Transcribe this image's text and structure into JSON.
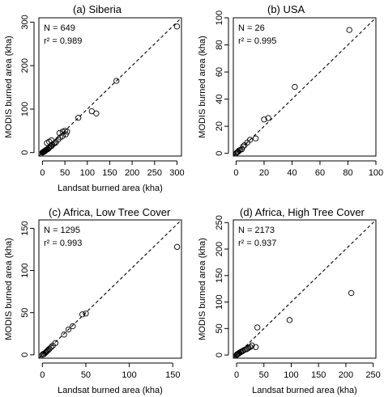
{
  "chart_data": [
    {
      "type": "scatter",
      "title": "(a) Siberia",
      "xlabel": "Landsat burned area (kha)",
      "ylabel": "MODIS burned area (kha)",
      "xlim": [
        -8,
        310
      ],
      "ylim": [
        -8,
        310
      ],
      "xticks": [
        0,
        50,
        100,
        150,
        200,
        250,
        300
      ],
      "yticks": [
        0,
        100,
        200,
        300
      ],
      "n_label": "N = 649",
      "r2_label": "r² = 0.989",
      "points": [
        [
          0,
          0
        ],
        [
          1,
          1
        ],
        [
          2,
          1
        ],
        [
          3,
          2
        ],
        [
          4,
          3
        ],
        [
          5,
          3
        ],
        [
          6,
          4
        ],
        [
          7,
          5
        ],
        [
          8,
          6
        ],
        [
          10,
          7
        ],
        [
          12,
          8
        ],
        [
          14,
          10
        ],
        [
          15,
          12
        ],
        [
          18,
          14
        ],
        [
          20,
          15
        ],
        [
          22,
          18
        ],
        [
          25,
          20
        ],
        [
          28,
          22
        ],
        [
          30,
          24
        ],
        [
          15,
          25
        ],
        [
          20,
          28
        ],
        [
          10,
          22
        ],
        [
          35,
          30
        ],
        [
          40,
          35
        ],
        [
          45,
          38
        ],
        [
          38,
          45
        ],
        [
          45,
          48
        ],
        [
          50,
          50
        ],
        [
          55,
          48
        ],
        [
          52,
          42
        ],
        [
          80,
          80
        ],
        [
          110,
          95
        ],
        [
          120,
          90
        ],
        [
          165,
          165
        ],
        [
          300,
          290
        ]
      ]
    },
    {
      "type": "scatter",
      "title": "(b) USA",
      "xlabel": "",
      "ylabel": "MODIS burned area (kha)",
      "xlim": [
        -2,
        100
      ],
      "ylim": [
        -2,
        100
      ],
      "xticks": [
        0,
        20,
        40,
        60,
        80,
        100
      ],
      "yticks": [
        0,
        20,
        40,
        60,
        80,
        100
      ],
      "n_label": "N = 26",
      "r2_label": "r² = 0.995",
      "points": [
        [
          0,
          0
        ],
        [
          0.5,
          0.5
        ],
        [
          1,
          1
        ],
        [
          1.5,
          1.2
        ],
        [
          2,
          2
        ],
        [
          3,
          2.5
        ],
        [
          4,
          3
        ],
        [
          5,
          5
        ],
        [
          6,
          6
        ],
        [
          8,
          8
        ],
        [
          10,
          10
        ],
        [
          14,
          11
        ],
        [
          20,
          25
        ],
        [
          23,
          26
        ],
        [
          42,
          49
        ],
        [
          81,
          91
        ]
      ]
    },
    {
      "type": "scatter",
      "title": "(c) Africa, Low Tree Cover",
      "xlabel": "Landsat burned area (kha)",
      "ylabel": "MODIS burned area (kha)",
      "xlim": [
        -4,
        160
      ],
      "ylim": [
        -4,
        160
      ],
      "xticks": [
        0,
        50,
        100,
        150
      ],
      "yticks": [
        0,
        50,
        100,
        150
      ],
      "n_label": "N = 1295",
      "r2_label": "r² = 0.993",
      "points": [
        [
          0,
          0
        ],
        [
          1,
          1
        ],
        [
          2,
          1
        ],
        [
          3,
          2
        ],
        [
          4,
          3
        ],
        [
          5,
          4
        ],
        [
          6,
          5
        ],
        [
          7,
          6
        ],
        [
          8,
          7
        ],
        [
          10,
          9
        ],
        [
          12,
          11
        ],
        [
          15,
          14
        ],
        [
          25,
          24
        ],
        [
          30,
          30
        ],
        [
          35,
          34
        ],
        [
          46,
          48
        ],
        [
          50,
          49
        ],
        [
          155,
          128
        ]
      ]
    },
    {
      "type": "scatter",
      "title": "(d) Africa, High Tree Cover",
      "xlabel": "Landsat burned area (kha)",
      "ylabel": "MODIS burned area (kha)",
      "xlim": [
        -6,
        255
      ],
      "ylim": [
        -6,
        255
      ],
      "xticks": [
        0,
        50,
        100,
        150,
        200,
        250
      ],
      "yticks": [
        0,
        50,
        100,
        150,
        200,
        250
      ],
      "n_label": "N = 2173",
      "r2_label": "r² = 0.937",
      "points": [
        [
          0,
          0
        ],
        [
          1,
          1
        ],
        [
          2,
          2
        ],
        [
          3,
          2
        ],
        [
          4,
          3
        ],
        [
          5,
          4
        ],
        [
          7,
          5
        ],
        [
          8,
          6
        ],
        [
          10,
          7
        ],
        [
          12,
          8
        ],
        [
          15,
          10
        ],
        [
          18,
          11
        ],
        [
          20,
          12
        ],
        [
          22,
          14
        ],
        [
          25,
          15
        ],
        [
          28,
          18
        ],
        [
          35,
          15
        ],
        [
          38,
          52
        ],
        [
          97,
          66
        ],
        [
          210,
          117
        ]
      ]
    }
  ]
}
